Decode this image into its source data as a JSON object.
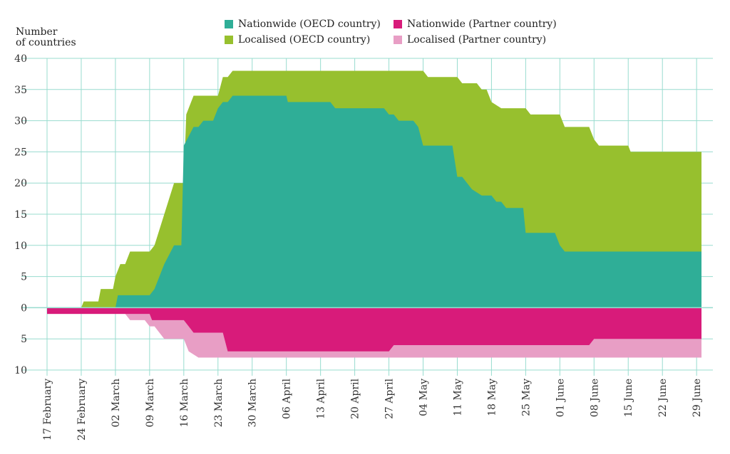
{
  "chart_data": {
    "type": "area",
    "ylabel_line1": "Number",
    "ylabel_line2": "of countries",
    "ylim": [
      -10,
      40
    ],
    "yticks": [
      {
        "value": 40,
        "label": "40"
      },
      {
        "value": 35,
        "label": "35"
      },
      {
        "value": 30,
        "label": "30"
      },
      {
        "value": 25,
        "label": "25"
      },
      {
        "value": 20,
        "label": "20"
      },
      {
        "value": 15,
        "label": "15"
      },
      {
        "value": 10,
        "label": "10"
      },
      {
        "value": 5,
        "label": "5"
      },
      {
        "value": 0,
        "label": "0"
      },
      {
        "value": -5,
        "label": "5"
      },
      {
        "value": -10,
        "label": "10"
      }
    ],
    "xticks": [
      {
        "day": 0,
        "label": "17 February"
      },
      {
        "day": 7,
        "label": "24 February"
      },
      {
        "day": 14,
        "label": "02 March"
      },
      {
        "day": 21,
        "label": "09 March"
      },
      {
        "day": 28,
        "label": "16 March"
      },
      {
        "day": 35,
        "label": "23 March"
      },
      {
        "day": 42,
        "label": "30 March"
      },
      {
        "day": 49,
        "label": "06 April"
      },
      {
        "day": 56,
        "label": "13 April"
      },
      {
        "day": 63,
        "label": "20 April"
      },
      {
        "day": 70,
        "label": "27 April"
      },
      {
        "day": 77,
        "label": "04 May"
      },
      {
        "day": 84,
        "label": "11 May"
      },
      {
        "day": 91,
        "label": "18 May"
      },
      {
        "day": 98,
        "label": "25 May"
      },
      {
        "day": 105,
        "label": "01 June"
      },
      {
        "day": 112,
        "label": "08 June"
      },
      {
        "day": 119,
        "label": "15 June"
      },
      {
        "day": 126,
        "label": "22 June"
      },
      {
        "day": 133,
        "label": "29 June"
      }
    ],
    "xlim": [
      0,
      134
    ],
    "legend": {
      "placement": "top",
      "items": [
        {
          "name": "Nationwide (OECD country)",
          "color": "#2fae97"
        },
        {
          "name": "Nationwide (Partner country)",
          "color": "#d81b7a"
        },
        {
          "name": "Localised (OECD country)",
          "color": "#97c02e"
        },
        {
          "name": "Localised (Partner country)",
          "color": "#e89ec5"
        }
      ]
    },
    "colors": {
      "grid": "#98dccf",
      "axis_text": "#333333"
    },
    "series": {
      "nationwide_oecd": [
        [
          0,
          0
        ],
        [
          14,
          0
        ],
        [
          14.5,
          2
        ],
        [
          21,
          2
        ],
        [
          22,
          3
        ],
        [
          24,
          7
        ],
        [
          26,
          10
        ],
        [
          27.5,
          10
        ],
        [
          28,
          26
        ],
        [
          30,
          29
        ],
        [
          31,
          29
        ],
        [
          32,
          30
        ],
        [
          34,
          30
        ],
        [
          35,
          32
        ],
        [
          36,
          33
        ],
        [
          37,
          33
        ],
        [
          38,
          34
        ],
        [
          49,
          34
        ],
        [
          49.3,
          33
        ],
        [
          58,
          33
        ],
        [
          59,
          32
        ],
        [
          69,
          32
        ],
        [
          70,
          31
        ],
        [
          71,
          31
        ],
        [
          72,
          30
        ],
        [
          75,
          30
        ],
        [
          76,
          29
        ],
        [
          77,
          26
        ],
        [
          83,
          26
        ],
        [
          84,
          21
        ],
        [
          85,
          21
        ],
        [
          87,
          19
        ],
        [
          89,
          18
        ],
        [
          91,
          18
        ],
        [
          92,
          17
        ],
        [
          93,
          17
        ],
        [
          94,
          16
        ],
        [
          97.5,
          16
        ],
        [
          98,
          12
        ],
        [
          104,
          12
        ],
        [
          105,
          10
        ],
        [
          106,
          9
        ],
        [
          134,
          9
        ]
      ],
      "total_oecd": [
        [
          0,
          0
        ],
        [
          7,
          0
        ],
        [
          7.5,
          1
        ],
        [
          10.5,
          1
        ],
        [
          11,
          3
        ],
        [
          13.5,
          3
        ],
        [
          14,
          5
        ],
        [
          15,
          7
        ],
        [
          16,
          7
        ],
        [
          17,
          9
        ],
        [
          21,
          9
        ],
        [
          22,
          10
        ],
        [
          24,
          15
        ],
        [
          26,
          20
        ],
        [
          28,
          20
        ],
        [
          28.5,
          31
        ],
        [
          30,
          34
        ],
        [
          35,
          34
        ],
        [
          36,
          37
        ],
        [
          37,
          37
        ],
        [
          38,
          38
        ],
        [
          77,
          38
        ],
        [
          78,
          37
        ],
        [
          84,
          37
        ],
        [
          85,
          36
        ],
        [
          88,
          36
        ],
        [
          89,
          35
        ],
        [
          90,
          35
        ],
        [
          91,
          33
        ],
        [
          93,
          32
        ],
        [
          98,
          32
        ],
        [
          99,
          31
        ],
        [
          105,
          31
        ],
        [
          106,
          29
        ],
        [
          111,
          29
        ],
        [
          112,
          27
        ],
        [
          113,
          26
        ],
        [
          119,
          26
        ],
        [
          119.5,
          25
        ],
        [
          134,
          25
        ]
      ],
      "nationwide_partner": [
        [
          0,
          -1
        ],
        [
          21,
          -1
        ],
        [
          21.5,
          -2
        ],
        [
          28,
          -2
        ],
        [
          29,
          -3
        ],
        [
          30,
          -4
        ],
        [
          36,
          -4
        ],
        [
          37,
          -7
        ],
        [
          70,
          -7
        ],
        [
          71,
          -6
        ],
        [
          111,
          -6
        ],
        [
          112,
          -5
        ],
        [
          134,
          -5
        ]
      ],
      "total_partner": [
        [
          0,
          -1
        ],
        [
          16,
          -1
        ],
        [
          17,
          -2
        ],
        [
          20,
          -2
        ],
        [
          21,
          -3
        ],
        [
          22,
          -3
        ],
        [
          23,
          -4
        ],
        [
          24,
          -5
        ],
        [
          28,
          -5
        ],
        [
          29,
          -7
        ],
        [
          31,
          -8
        ],
        [
          134,
          -8
        ]
      ]
    }
  }
}
